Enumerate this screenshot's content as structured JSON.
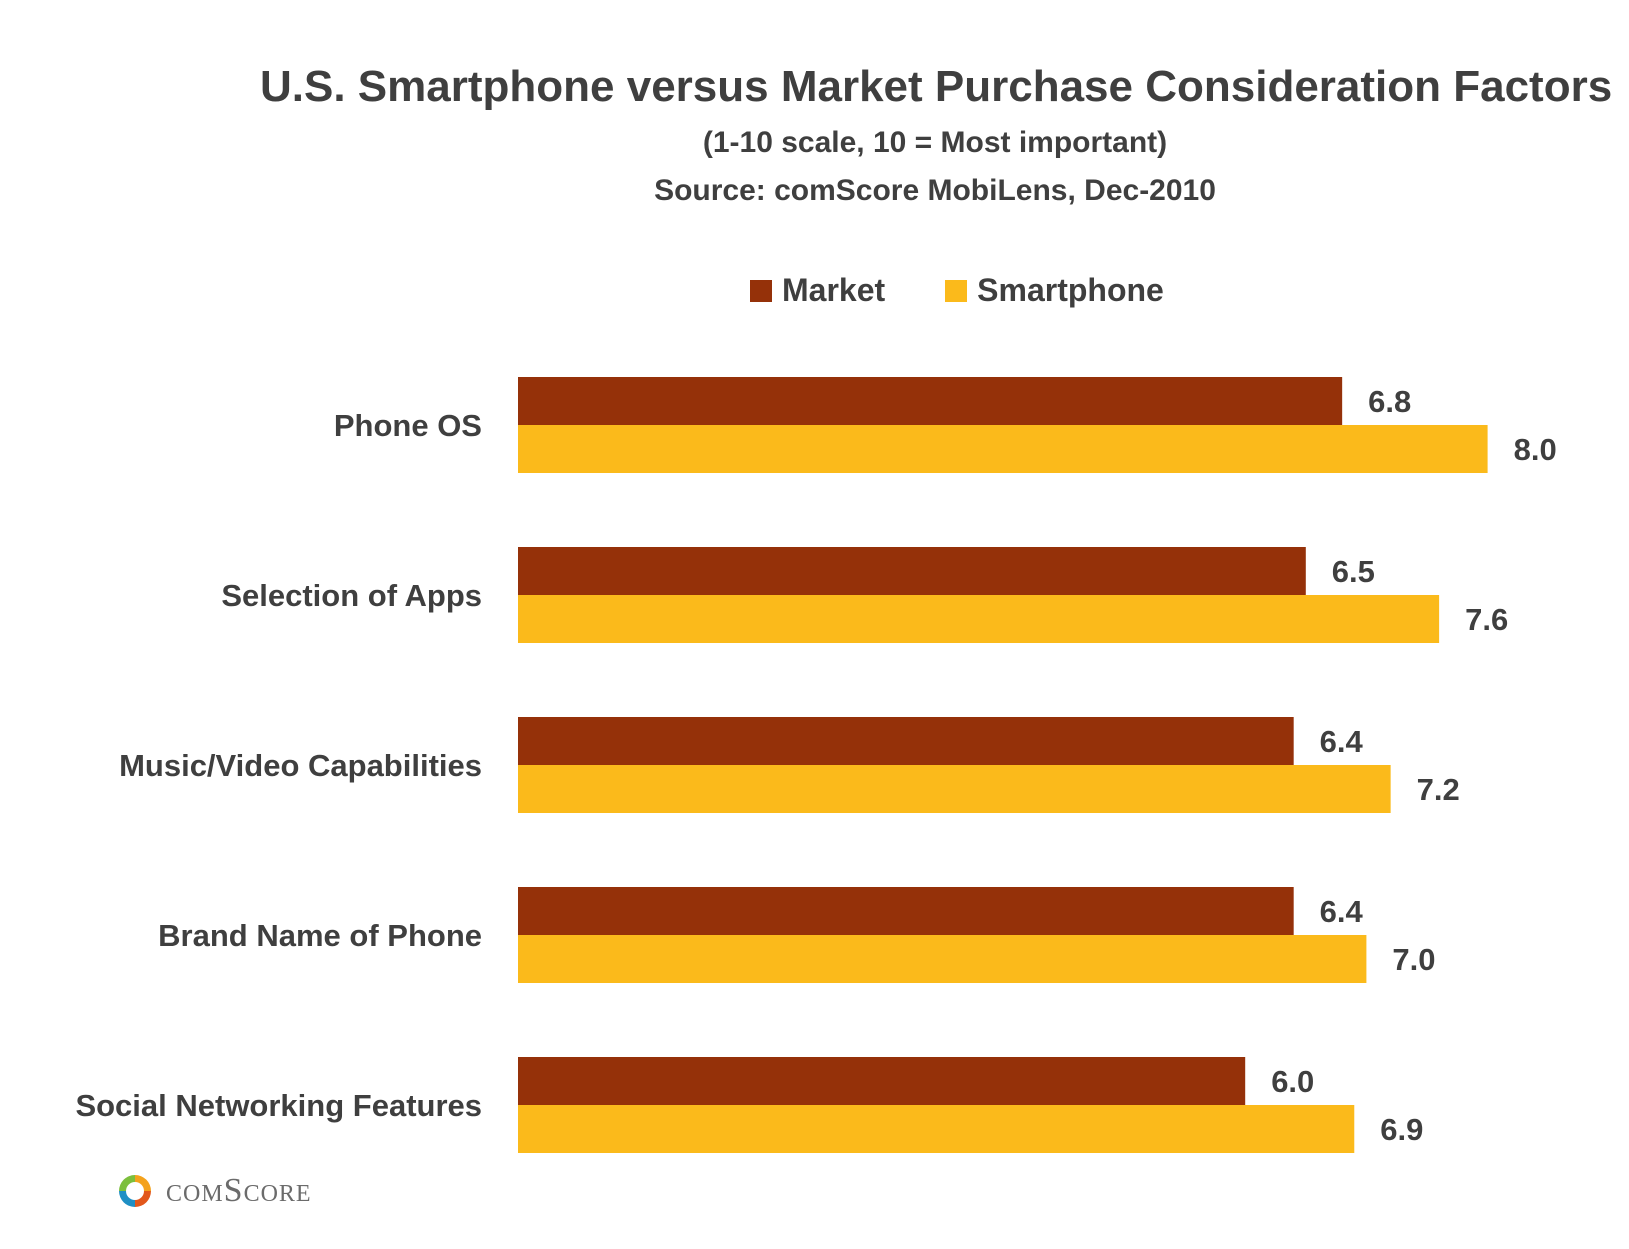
{
  "chart_data": {
    "type": "bar",
    "orientation": "horizontal",
    "title": "U.S. Smartphone versus Market Purchase Consideration Factors",
    "subtitle": [
      "(1-10 scale, 10 = Most important)",
      "Source: comScore MobiLens, Dec-2010"
    ],
    "categories": [
      "Phone OS",
      "Selection of Apps",
      "Music/Video Capabilities",
      "Brand Name of Phone",
      "Social Networking Features"
    ],
    "series": [
      {
        "name": "Market",
        "color": "#953109",
        "values": [
          6.8,
          6.5,
          6.4,
          6.4,
          6.0
        ],
        "labels": [
          "6.8",
          "6.5",
          "6.4",
          "6.4",
          "6.0"
        ]
      },
      {
        "name": "Smartphone",
        "color": "#FBBA1B",
        "values": [
          8.0,
          7.6,
          7.2,
          7.0,
          6.9
        ],
        "labels": [
          "8.0",
          "7.6",
          "7.2",
          "7.0",
          "6.9"
        ]
      }
    ],
    "legend": "top",
    "grid": false,
    "axis_visible": false
  },
  "branding": {
    "logo_text": "comScore",
    "logo_icon": "comscore-logo-icon"
  }
}
